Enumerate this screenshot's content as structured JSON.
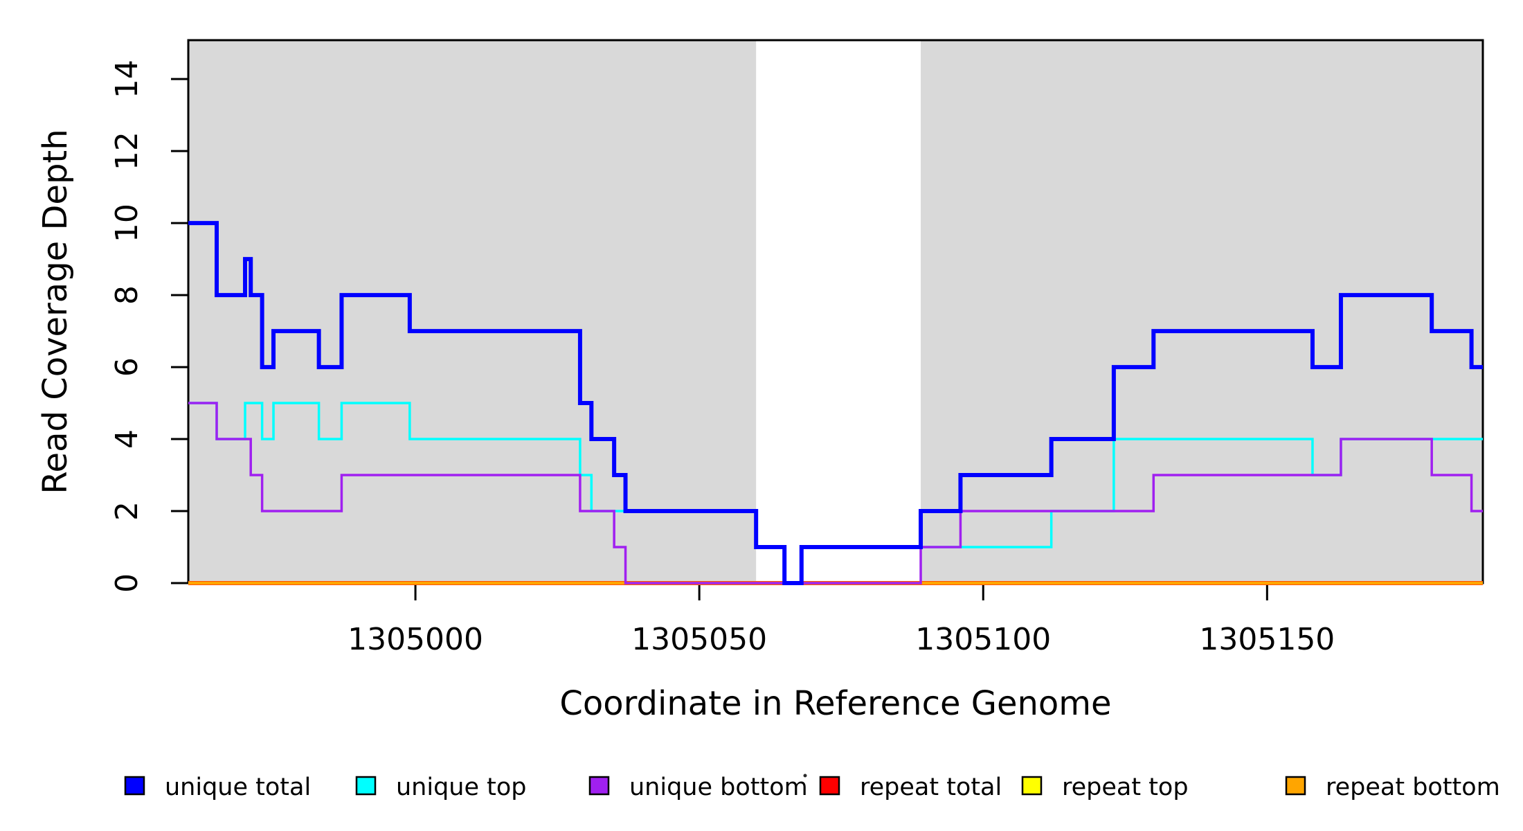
{
  "figure": {
    "background": "#FFFFFF",
    "plot_background": "#D9D9D9"
  },
  "chart_data": {
    "type": "line",
    "subtype": "step",
    "title": "",
    "xlabel": "Coordinate in Reference Genome",
    "ylabel": "Read Coverage Depth",
    "xlim": [
      1304960,
      1305188
    ],
    "ylim": [
      0,
      15.08
    ],
    "x_ticks": [
      1305000,
      1305050,
      1305100,
      1305150
    ],
    "y_ticks": [
      0,
      2,
      4,
      6,
      8,
      10,
      12,
      14
    ],
    "grid": false,
    "plot_background": "#D9D9D9",
    "highlight_band": {
      "x0": 1305060,
      "x1": 1305089,
      "color": "#FFFFFF"
    },
    "legend_position": "bottom",
    "legend": {
      "entries": [
        {
          "label": "unique total",
          "color": "#0000FF"
        },
        {
          "label": "unique top",
          "color": "#00FFFF"
        },
        {
          "label": "unique bottom",
          "color": "#A020F0"
        },
        {
          "label": "repeat total",
          "color": "#FF0000"
        },
        {
          "label": "repeat top",
          "color": "#FFFF00"
        },
        {
          "label": "repeat bottom",
          "color": "#FFA500"
        }
      ]
    },
    "series": [
      {
        "name": "repeat total",
        "color": "#FF0000",
        "width": 6,
        "points": [
          [
            1304960,
            0
          ]
        ]
      },
      {
        "name": "repeat top",
        "color": "#FFFF00",
        "width": 3,
        "points": [
          [
            1304960,
            0
          ]
        ]
      },
      {
        "name": "repeat bottom",
        "color": "#FFA500",
        "width": 5,
        "points": [
          [
            1304960,
            0
          ]
        ]
      },
      {
        "name": "unique top",
        "color": "#00FFFF",
        "width": 3.5,
        "points": [
          [
            1304960,
            5
          ],
          [
            1304965,
            4
          ],
          [
            1304970,
            5
          ],
          [
            1304973,
            4
          ],
          [
            1304975,
            5
          ],
          [
            1304983,
            4
          ],
          [
            1304987,
            5
          ],
          [
            1304999,
            4
          ],
          [
            1305029,
            3
          ],
          [
            1305031,
            2
          ],
          [
            1305060,
            1
          ],
          [
            1305065,
            0
          ],
          [
            1305068,
            1
          ],
          [
            1305112,
            2
          ],
          [
            1305123,
            4
          ],
          [
            1305158,
            3
          ],
          [
            1305163,
            4
          ]
        ]
      },
      {
        "name": "unique bottom",
        "color": "#A020F0",
        "width": 3.5,
        "points": [
          [
            1304960,
            5
          ],
          [
            1304965,
            4
          ],
          [
            1304971,
            3
          ],
          [
            1304973,
            2
          ],
          [
            1304987,
            3
          ],
          [
            1305029,
            2
          ],
          [
            1305035,
            1
          ],
          [
            1305037,
            0
          ],
          [
            1305089,
            1
          ],
          [
            1305096,
            2
          ],
          [
            1305130,
            3
          ],
          [
            1305163,
            4
          ],
          [
            1305179,
            3
          ],
          [
            1305186,
            2
          ]
        ]
      },
      {
        "name": "unique total",
        "color": "#0000FF",
        "width": 6,
        "points": [
          [
            1304960,
            10
          ],
          [
            1304965,
            8
          ],
          [
            1304970,
            9
          ],
          [
            1304971,
            8
          ],
          [
            1304973,
            6
          ],
          [
            1304975,
            7
          ],
          [
            1304983,
            6
          ],
          [
            1304987,
            8
          ],
          [
            1304999,
            7
          ],
          [
            1305029,
            5
          ],
          [
            1305031,
            4
          ],
          [
            1305035,
            3
          ],
          [
            1305037,
            2
          ],
          [
            1305060,
            1
          ],
          [
            1305065,
            0
          ],
          [
            1305068,
            1
          ],
          [
            1305089,
            2
          ],
          [
            1305096,
            3
          ],
          [
            1305112,
            4
          ],
          [
            1305123,
            6
          ],
          [
            1305130,
            7
          ],
          [
            1305158,
            6
          ],
          [
            1305163,
            8
          ],
          [
            1305179,
            7
          ],
          [
            1305186,
            6
          ]
        ]
      }
    ],
    "draw_order": [
      "repeat total",
      "repeat top",
      "repeat bottom",
      "unique top",
      "unique bottom",
      "unique total"
    ]
  }
}
